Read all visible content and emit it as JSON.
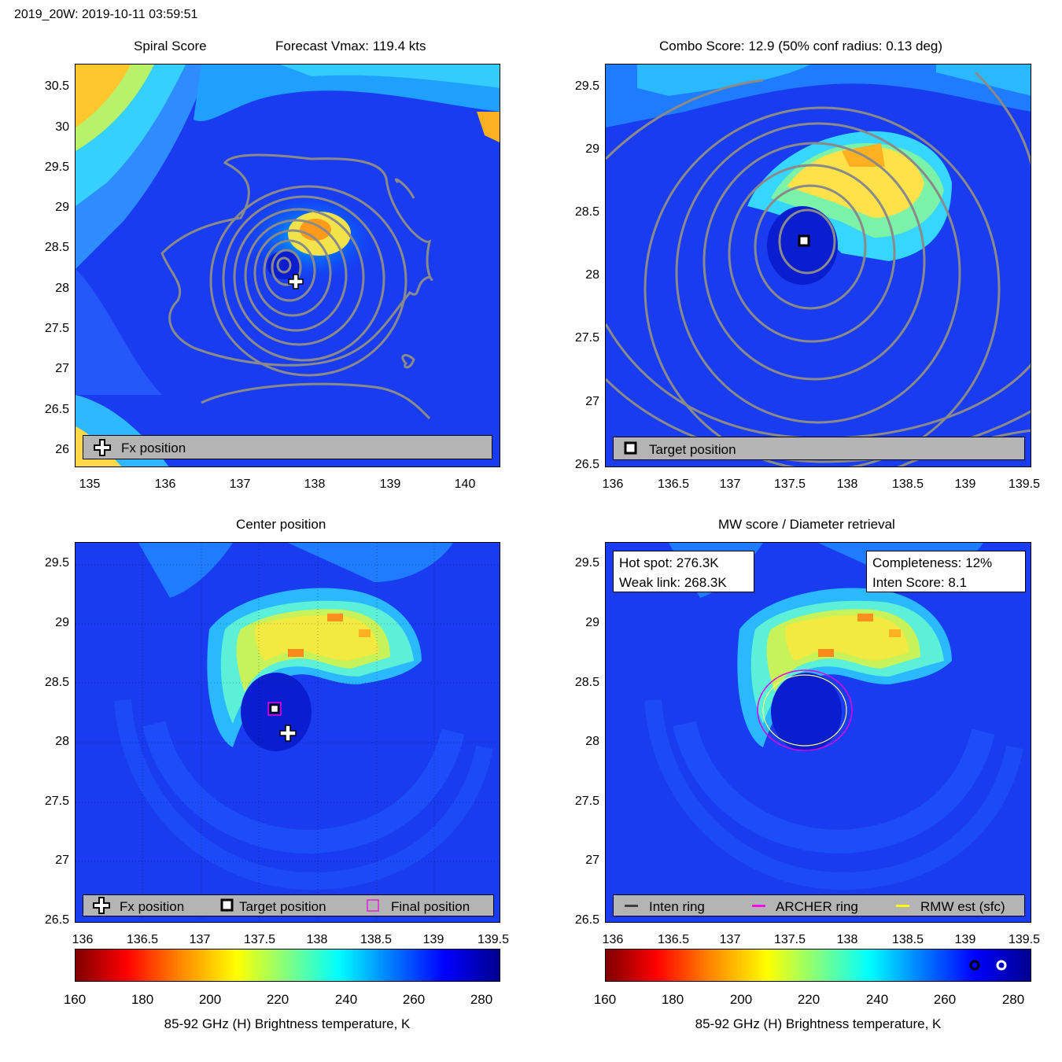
{
  "figure": {
    "suptitle": "2019_20W: 2019-10-11 03:59:51"
  },
  "panels": {
    "spiral": {
      "title_left": "Spiral Score",
      "title_right": "Forecast Vmax: 119.4 kts",
      "legend": [
        "Fx position"
      ]
    },
    "combo": {
      "title": "Combo Score: 12.9  (50% conf radius: 0.13 deg)",
      "legend": [
        "Target position"
      ]
    },
    "center": {
      "title": "Center position",
      "legend": [
        "Fx position",
        "Target position",
        "Final position"
      ]
    },
    "mw": {
      "title": "MW score / Diameter retrieval",
      "hotspot": "Hot spot: 276.3K",
      "weaklink": "Weak link: 268.3K",
      "completeness": "Completeness: 12%",
      "inten_score": "Inten Score: 8.1",
      "legend": [
        "Inten ring",
        "ARCHER ring",
        "RMW est (sfc)"
      ]
    }
  },
  "colorbar": {
    "label": "85-92 GHz (H) Brightness temperature, K",
    "ticks": [
      "160",
      "180",
      "200",
      "220",
      "240",
      "260",
      "280"
    ]
  },
  "chart_data": [
    {
      "type": "heatmap",
      "title": "Spiral Score",
      "annotation": "Forecast Vmax: 119.4 kts",
      "xlim": [
        134.8,
        140.4
      ],
      "ylim": [
        25.8,
        30.8
      ],
      "xticks": [
        "135",
        "136",
        "137",
        "138",
        "139",
        "140"
      ],
      "yticks": [
        "26",
        "26.5",
        "27",
        "27.5",
        "28",
        "28.5",
        "29",
        "29.5",
        "30",
        "30.5"
      ],
      "markers": [
        {
          "name": "Fx position",
          "x": 137.7,
          "y": 28.08
        }
      ],
      "contour_center": {
        "x": 137.55,
        "y": 28.3
      }
    },
    {
      "type": "heatmap",
      "title": "Combo Score: 12.9  (50% conf radius: 0.13 deg)",
      "xlim": [
        136,
        139.5
      ],
      "ylim": [
        26.5,
        29.7
      ],
      "xticks": [
        "136",
        "136.5",
        "137",
        "137.5",
        "138",
        "138.5",
        "139",
        "139.5"
      ],
      "yticks": [
        "26.5",
        "27",
        "27.5",
        "28",
        "28.5",
        "29",
        "29.5"
      ],
      "markers": [
        {
          "name": "Target position",
          "x": 137.63,
          "y": 28.28
        }
      ]
    },
    {
      "type": "heatmap",
      "title": "Center position",
      "xlim": [
        136,
        139.5
      ],
      "ylim": [
        26.5,
        29.7
      ],
      "xticks": [
        "136",
        "136.5",
        "137",
        "137.5",
        "138",
        "138.5",
        "139",
        "139.5"
      ],
      "yticks": [
        "26.5",
        "27",
        "27.5",
        "28",
        "28.5",
        "29",
        "29.5"
      ],
      "markers": [
        {
          "name": "Fx position",
          "x": 137.7,
          "y": 28.08
        },
        {
          "name": "Target position",
          "x": 137.63,
          "y": 28.28
        },
        {
          "name": "Final position",
          "x": 137.63,
          "y": 28.28
        }
      ]
    },
    {
      "type": "heatmap",
      "title": "MW score / Diameter retrieval",
      "xlim": [
        136,
        139.5
      ],
      "ylim": [
        26.5,
        29.7
      ],
      "xticks": [
        "136",
        "136.5",
        "137",
        "137.5",
        "138",
        "138.5",
        "139",
        "139.5"
      ],
      "yticks": [
        "26.5",
        "27",
        "27.5",
        "28",
        "28.5",
        "29",
        "29.5"
      ],
      "rings": [
        {
          "name": "ARCHER ring",
          "x": 137.63,
          "y": 28.27,
          "radius_deg": 0.39
        },
        {
          "name": "RMW est (sfc)",
          "x": 137.63,
          "y": 28.27,
          "radius_deg": 0.34
        }
      ],
      "colorbar_markers": [
        {
          "name": "Weak link",
          "value": 268.3
        },
        {
          "name": "Hot spot",
          "value": 276.3
        }
      ]
    }
  ]
}
